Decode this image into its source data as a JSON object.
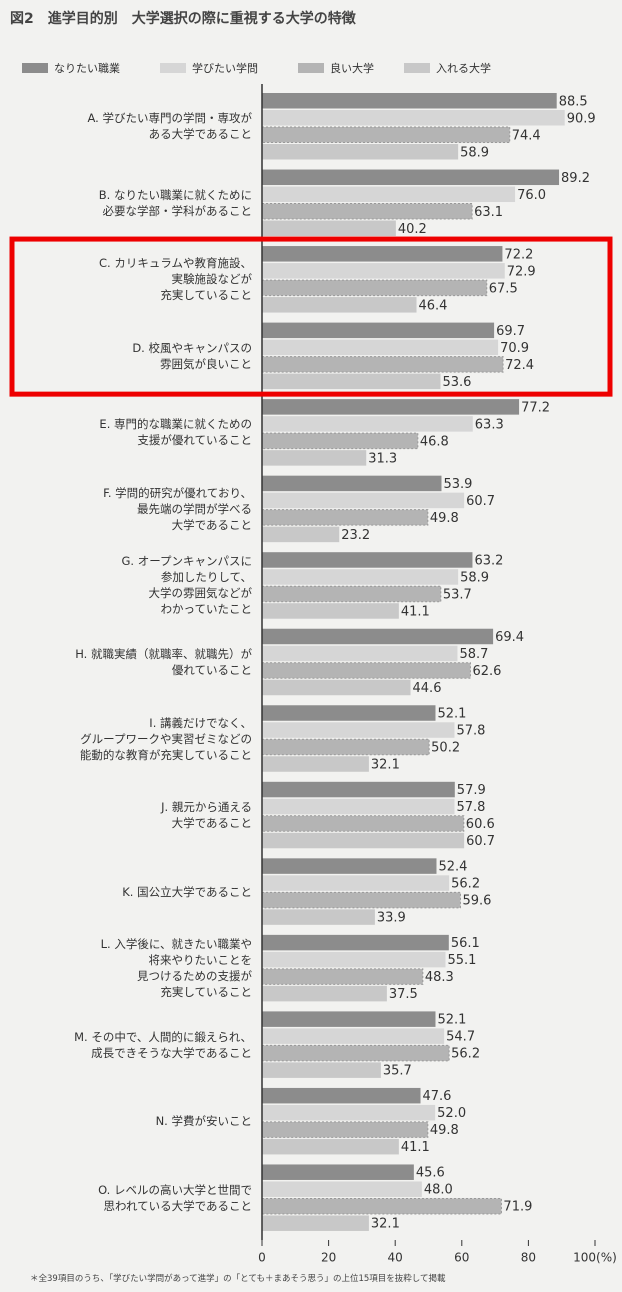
{
  "chart_data": {
    "type": "hbar",
    "title": "図2　進学目的別　大学選択の際に重視する大学の特徴",
    "categories": [
      "A. 学びたい専門の学問・専攻が\nある大学であること",
      "B. なりたい職業に就くために\n必要な学部・学科があること",
      "C. カリキュラムや教育施設、\n実験施設などが\n充実していること",
      "D. 校風やキャンパスの\n雰囲気が良いこと",
      "E. 専門的な職業に就くための\n支援が優れていること",
      "F. 学問的研究が優れており、\n最先端の学問が学べる\n大学であること",
      "G. オープンキャンパスに\n参加したりして、\n大学の雰囲気などが\nわかっていたこと",
      "H. 就職実績（就職率、就職先）が\n優れていること",
      "I. 講義だけでなく、\nグループワークや実習ゼミなどの\n能動的な教育が充実していること",
      "J. 親元から通える\n大学であること",
      "K. 国公立大学であること",
      "L. 入学後に、就きたい職業や\n将来やりたいことを\n見つけるための支援が\n充実していること",
      "M. その中で、人間的に鍛えられ、\n成長できそうな大学であること",
      "N. 学費が安いこと",
      "O. レベルの高い大学と世間で\n思われている大学であること"
    ],
    "series": [
      {
        "name": "なりたい職業",
        "color": "#8c8c8c",
        "values": [
          88.5,
          89.2,
          72.2,
          69.7,
          77.2,
          53.9,
          63.2,
          69.4,
          52.1,
          57.9,
          52.4,
          56.1,
          52.1,
          47.6,
          45.6
        ],
        "value_labels": [
          "88.5",
          "89.2",
          "72.2",
          "69.7",
          "77.2",
          "53.9",
          "63.2",
          "69.4",
          "52.1",
          "57.9",
          "52.4",
          "56.1",
          "52.1",
          "47.6",
          "45.6"
        ]
      },
      {
        "name": "学びたい学問",
        "color": "#d6d6d6",
        "values": [
          90.9,
          76.0,
          72.9,
          70.9,
          63.3,
          60.7,
          58.9,
          58.7,
          57.8,
          57.8,
          56.2,
          55.1,
          54.7,
          52.0,
          48.0
        ],
        "value_labels": [
          "90.9",
          "76.0",
          "72.9",
          "70.9",
          "63.3",
          "60.7",
          "58.9",
          "58.7",
          "57.8",
          "57.8",
          "56.2",
          "55.1",
          "54.7",
          "52.0",
          "48.0"
        ]
      },
      {
        "name": "良い大学",
        "color": "#b4b4b4",
        "values": [
          74.4,
          63.1,
          67.5,
          72.4,
          46.8,
          49.8,
          53.7,
          62.6,
          50.2,
          60.6,
          59.6,
          48.3,
          56.2,
          49.8,
          71.9
        ],
        "value_labels": [
          "74.4",
          "63.1",
          "67.5",
          "72.4",
          "46.8",
          "49.8",
          "53.7",
          "62.6",
          "50.2",
          "60.6",
          "59.6",
          "48.3",
          "56.2",
          "49.8",
          "71.9"
        ]
      },
      {
        "name": "入れる大学",
        "color": "#c8c8c8",
        "values": [
          58.9,
          40.2,
          46.4,
          53.6,
          31.3,
          23.2,
          41.1,
          44.6,
          32.1,
          60.7,
          33.9,
          37.5,
          35.7,
          41.1,
          32.1
        ],
        "value_labels": [
          "58.9",
          "40.2",
          "46.4",
          "53.6",
          "31.3",
          "23.2",
          "41.1",
          "44.6",
          "32.1",
          "60.7",
          "33.9",
          "37.5",
          "35.7",
          "41.1",
          "32.1"
        ]
      }
    ],
    "xlim": [
      0,
      100
    ],
    "xticks": [
      0,
      20,
      40,
      60,
      80,
      {
        "value": 100,
        "label": "100(%)"
      }
    ],
    "grid": false,
    "footnote": "＊全39項目のうち、「学びたい学問があって進学」の「とても＋まあそう思う」の上位15項目を抜粋して掲載"
  }
}
